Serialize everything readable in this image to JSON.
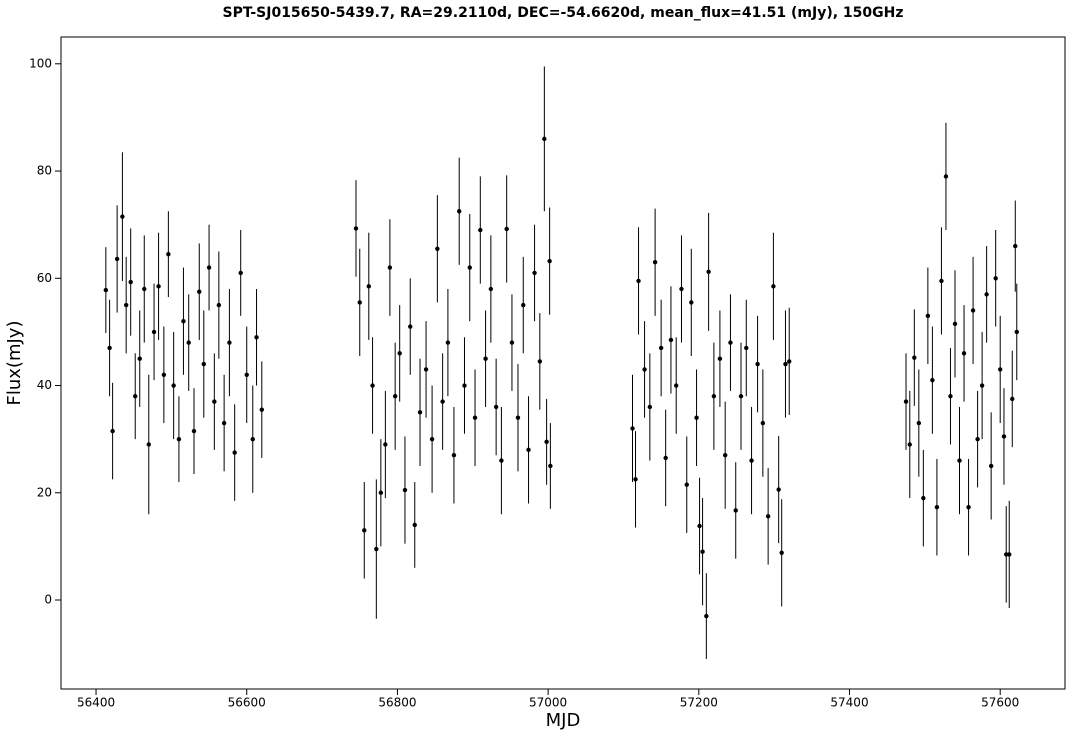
{
  "chart_data": {
    "type": "errorbar",
    "title": "SPT-SJ015650-5439.7, RA=29.2110d, DEC=-54.6620d, mean_flux=41.51 (mJy), 150GHz",
    "x_label": "MJD",
    "y_label": "Flux(mJy)",
    "color": "#000000",
    "xlim": [
      56353.5,
      57686
    ],
    "ylim": [
      -16.6,
      105
    ],
    "xticks": [
      56400,
      56600,
      56800,
      57000,
      57200,
      57400,
      57600
    ],
    "yticks": [
      0,
      20,
      40,
      60,
      80,
      100
    ],
    "x": [
      56413,
      56418,
      56422,
      56428,
      56435,
      56440,
      56446,
      56452,
      56458,
      56464,
      56470,
      56477,
      56483,
      56490,
      56496,
      56503,
      56510,
      56516,
      56523,
      56530,
      56537,
      56543,
      56550,
      56557,
      56563,
      56570,
      56577,
      56584,
      56592,
      56600,
      56608,
      56613,
      56620,
      56745,
      56750,
      56756,
      56762,
      56767,
      56772,
      56778,
      56784,
      56790,
      56797,
      56803,
      56810,
      56817,
      56823,
      56830,
      56838,
      56846,
      56853,
      56860,
      56867,
      56875,
      56882,
      56889,
      56896,
      56903,
      56910,
      56917,
      56924,
      56931,
      56938,
      56945,
      56952,
      56960,
      56967,
      56974,
      56982,
      56989,
      56995,
      56998,
      57002,
      57003,
      57112,
      57116,
      57120,
      57128,
      57135,
      57142,
      57150,
      57156,
      57163,
      57170,
      57177,
      57184,
      57190,
      57197,
      57201,
      57205,
      57210,
      57213,
      57220,
      57228,
      57235,
      57242,
      57249,
      57256,
      57263,
      57270,
      57278,
      57285,
      57292,
      57299,
      57306,
      57310,
      57315,
      57320,
      57475,
      57480,
      57486,
      57492,
      57498,
      57504,
      57510,
      57516,
      57522,
      57528,
      57534,
      57540,
      57546,
      57552,
      57558,
      57564,
      57570,
      57576,
      57582,
      57588,
      57594,
      57600,
      57605,
      57608,
      57612,
      57616,
      57620,
      57622
    ],
    "values": [
      57.8,
      47,
      31.5,
      63.6,
      71.5,
      55,
      59.3,
      38,
      45,
      58,
      29,
      50,
      58.5,
      42,
      64.5,
      40,
      30,
      52,
      48,
      31.5,
      57.5,
      44,
      62,
      37,
      55,
      33,
      48,
      27.5,
      61,
      42,
      30,
      49,
      35.5,
      69.3,
      55.5,
      13,
      58.5,
      40,
      9.5,
      20,
      29,
      62,
      38,
      46,
      20.5,
      51,
      14,
      35,
      43,
      30,
      65.5,
      37,
      48,
      27,
      72.5,
      40,
      62,
      34,
      69,
      45,
      58,
      36,
      26,
      69.2,
      48,
      34,
      55,
      28,
      61,
      44.5,
      86,
      29.5,
      63.2,
      25,
      32,
      22.5,
      59.5,
      43,
      36,
      63,
      47,
      26.5,
      48.5,
      40,
      58,
      21.5,
      55.5,
      34,
      13.8,
      9,
      -3,
      61.2,
      38,
      45,
      27,
      48,
      16.7,
      38,
      47,
      26,
      44,
      33,
      15.6,
      58.5,
      20.6,
      8.8,
      44,
      44.5,
      37,
      29,
      45.2,
      33,
      19,
      53,
      41,
      17.3,
      59.5,
      79,
      38,
      51.5,
      26,
      46,
      17.3,
      54,
      30,
      40,
      57,
      25,
      60,
      43,
      30.5,
      8.5,
      8.5,
      37.5,
      66,
      50
    ],
    "errors": [
      8,
      9,
      9,
      10,
      12,
      9,
      10,
      8,
      9,
      10,
      13,
      9,
      10,
      9,
      8,
      10,
      8,
      10,
      9,
      8,
      9,
      10,
      8,
      9,
      10,
      9,
      10,
      9,
      8,
      9,
      10,
      9,
      9,
      9,
      10,
      9,
      10,
      9,
      13,
      10,
      10,
      9,
      10,
      9,
      10,
      9,
      8,
      10,
      9,
      10,
      10,
      9,
      10,
      9,
      10,
      9,
      10,
      9,
      10,
      9,
      10,
      9,
      10,
      10,
      9,
      10,
      9,
      10,
      9,
      9,
      13.5,
      8,
      10,
      8,
      10,
      9,
      10,
      9,
      10,
      10,
      9,
      9,
      10,
      9,
      10,
      9,
      10,
      9,
      9,
      10,
      8,
      11,
      10,
      9,
      10,
      9,
      9,
      10,
      9,
      10,
      9,
      10,
      9,
      10,
      10,
      10,
      10,
      10,
      9,
      10,
      9,
      10,
      9,
      9,
      10,
      9,
      10,
      10,
      9,
      10,
      10,
      9,
      9,
      10,
      9,
      10,
      9,
      10,
      9,
      10,
      9,
      9,
      10,
      9,
      8.5,
      9
    ]
  }
}
